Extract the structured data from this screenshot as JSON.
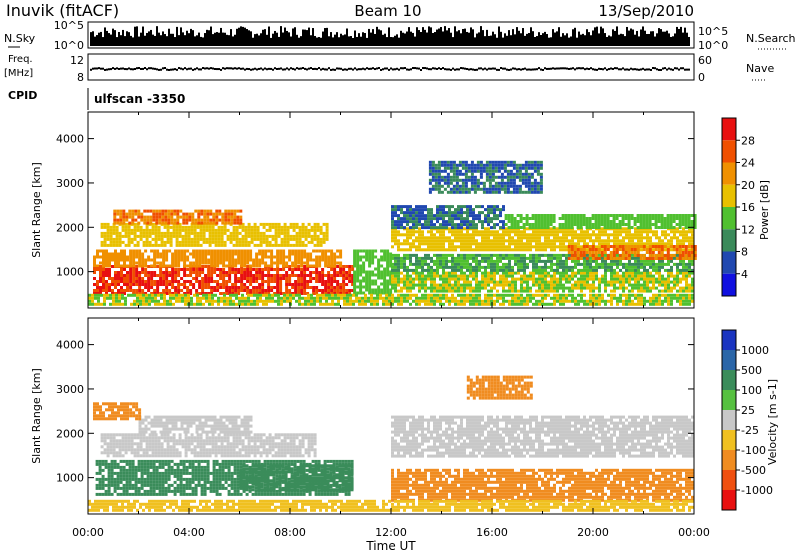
{
  "header": {
    "station": "Inuvik (fitACF)",
    "beam": "Beam 10",
    "date": "13/Sep/2010"
  },
  "top_panels": {
    "nsky_label": "N.Sky",
    "nsearch_label": "N.Search",
    "nsky_ticks": [
      "10^5",
      "10^0"
    ],
    "nsearch_ticks": [
      "10^5",
      "10^0"
    ],
    "freq_label": "Freq.",
    "freq_unit": "[MHz]",
    "freq_ticks": [
      "12",
      "8"
    ],
    "nave_label": "Nave",
    "nave_ticks": [
      "60",
      "0"
    ],
    "cpid_label": "CPID",
    "cpid_value": "ulfscan -3350"
  },
  "colors": {
    "power": [
      "#1010e0",
      "#2048b0",
      "#3a8a5a",
      "#50c030",
      "#e8c000",
      "#f09000",
      "#f05000",
      "#e81010"
    ],
    "velocity": [
      "#1a34c0",
      "#2a66a8",
      "#3a8c5a",
      "#56c040",
      "#c8c8c8",
      "#f0c020",
      "#f08c20",
      "#f05010",
      "#e81010"
    ]
  },
  "chart_data": [
    {
      "type": "heatmap",
      "name": "power",
      "xlabel": "",
      "ylabel": "Slant Range [km]",
      "x_ticks": [
        "00:00",
        "04:00",
        "08:00",
        "12:00",
        "16:00",
        "20:00",
        "00:00"
      ],
      "x_range_hours": [
        0,
        24
      ],
      "y_ticks": [
        1000,
        2000,
        3000,
        4000
      ],
      "y_range": [
        180,
        4600
      ],
      "colorbar_label": "Power [dB]",
      "colorbar_ticks": [
        4,
        8,
        12,
        16,
        20,
        24,
        28
      ],
      "bands": [
        {
          "t0": 0.2,
          "t1": 10.5,
          "r0": 500,
          "r1": 1150,
          "level": 28
        },
        {
          "t0": 0.2,
          "t1": 10.0,
          "r0": 1150,
          "r1": 1500,
          "level": 22
        },
        {
          "t0": 0.5,
          "t1": 9.5,
          "r0": 1600,
          "r1": 2100,
          "level": 18
        },
        {
          "t0": 1.0,
          "t1": 6.0,
          "r0": 2100,
          "r1": 2400,
          "level": 24
        },
        {
          "t0": 10.5,
          "t1": 12.0,
          "r0": 500,
          "r1": 1500,
          "level": 14
        },
        {
          "t0": 12.0,
          "t1": 24.0,
          "r0": 550,
          "r1": 1000,
          "level": 16
        },
        {
          "t0": 12.0,
          "t1": 24.0,
          "r0": 1000,
          "r1": 1400,
          "level": 12
        },
        {
          "t0": 12.0,
          "t1": 24.0,
          "r0": 1500,
          "r1": 2000,
          "level": 18
        },
        {
          "t0": 12.0,
          "t1": 16.5,
          "r0": 2000,
          "r1": 2500,
          "level": 8
        },
        {
          "t0": 16.5,
          "t1": 24.0,
          "r0": 2000,
          "r1": 2300,
          "level": 14
        },
        {
          "t0": 19.0,
          "t1": 24.0,
          "r0": 1300,
          "r1": 1600,
          "level": 24
        },
        {
          "t0": 13.5,
          "t1": 18.0,
          "r0": 2800,
          "r1": 3500,
          "level": 8
        },
        {
          "t0": 0.0,
          "t1": 24.0,
          "r0": 250,
          "r1": 500,
          "level": 16
        }
      ]
    },
    {
      "type": "heatmap",
      "name": "velocity",
      "xlabel": "Time UT",
      "ylabel": "Slant Range [km]",
      "x_ticks": [
        "00:00",
        "04:00",
        "08:00",
        "12:00",
        "16:00",
        "20:00",
        "00:00"
      ],
      "x_range_hours": [
        0,
        24
      ],
      "y_ticks": [
        1000,
        2000,
        3000,
        4000
      ],
      "y_range": [
        180,
        4600
      ],
      "colorbar_label": "Velocity [m s-1]",
      "colorbar_ticks": [
        1000,
        500,
        100,
        25,
        -25,
        -100,
        -500,
        -1000
      ],
      "bands": [
        {
          "t0": 0.3,
          "t1": 10.5,
          "r0": 600,
          "r1": 1400,
          "level": 100
        },
        {
          "t0": 6.0,
          "t1": 10.5,
          "r0": 700,
          "r1": 1300,
          "level": 300
        },
        {
          "t0": 0.5,
          "t1": 9.0,
          "r0": 1500,
          "r1": 2000,
          "level": 0
        },
        {
          "t0": 2.0,
          "t1": 6.5,
          "r0": 2000,
          "r1": 2400,
          "level": 0
        },
        {
          "t0": 12.0,
          "t1": 24.0,
          "r0": 500,
          "r1": 1200,
          "level": -300
        },
        {
          "t0": 12.0,
          "t1": 24.0,
          "r0": 1500,
          "r1": 2400,
          "level": 0
        },
        {
          "t0": 15.0,
          "t1": 17.5,
          "r0": 2800,
          "r1": 3300,
          "level": -300
        },
        {
          "t0": 0.0,
          "t1": 24.0,
          "r0": 250,
          "r1": 500,
          "level": -50
        },
        {
          "t0": 0.2,
          "t1": 2.0,
          "r0": 2300,
          "r1": 2700,
          "level": -300
        }
      ]
    }
  ]
}
